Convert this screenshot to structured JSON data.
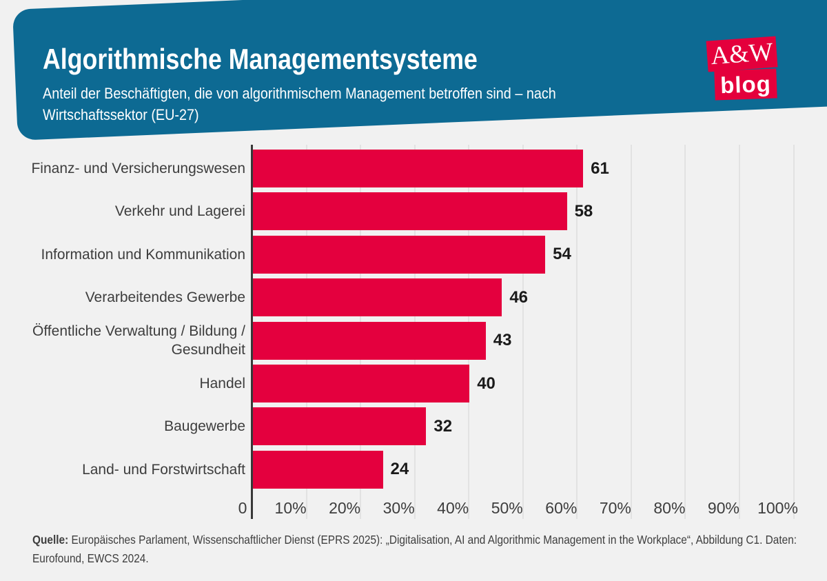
{
  "header": {
    "title": "Algorithmische Managementsysteme",
    "subtitle_lines": [
      "Anteil der Beschäftigten, die von algorithmischem Management betroffen sind – nach",
      "Wirtschaftssektor (EU-27)"
    ]
  },
  "logo": {
    "top_text": "A&W",
    "bottom_text": "blog"
  },
  "chart_data": {
    "type": "bar",
    "orientation": "horizontal",
    "title": "Algorithmische Managementsysteme",
    "subtitle": "Anteil der Beschäftigten, die von algorithmischem Management betroffen sind – nach Wirtschaftssektor (EU-27)",
    "categories": [
      "Finanz- und Versicherungswesen",
      "Verkehr und Lagerei",
      "Information und Kommunikation",
      "Verarbeitendes Gewerbe",
      "Öffentliche Verwaltung / Bildung / Gesundheit",
      "Handel",
      "Baugewerbe",
      "Land- und Forstwirtschaft"
    ],
    "values": [
      61,
      58,
      54,
      46,
      43,
      40,
      32,
      24
    ],
    "xlabel": "",
    "ylabel": "",
    "xlim": [
      0,
      100
    ],
    "x_ticks": [
      {
        "value": 0,
        "label": "0"
      },
      {
        "value": 10,
        "label": "10%"
      },
      {
        "value": 20,
        "label": "20%"
      },
      {
        "value": 30,
        "label": "30%"
      },
      {
        "value": 40,
        "label": "40%"
      },
      {
        "value": 50,
        "label": "50%"
      },
      {
        "value": 60,
        "label": "60%"
      },
      {
        "value": 70,
        "label": "70%"
      },
      {
        "value": 80,
        "label": "80%"
      },
      {
        "value": 90,
        "label": "90%"
      },
      {
        "value": 100,
        "label": "100%"
      }
    ],
    "grid": true,
    "legend": false
  },
  "footer": {
    "source_label": "Quelle:",
    "line1_rest": " Europäisches Parlament, Wissenschaftlicher Dienst (EPRS 2025): „Digitalisation, AI and Algorithmic Management in the Workplace“, Abbildung C1. Daten:",
    "line2": "Eurofound, EWCS 2024."
  },
  "colors": {
    "background": "#f1f1f1",
    "banner_blue": "#0d6a93",
    "bar_red": "#e4003e",
    "logo_red": "#e4003c",
    "axis": "#383838",
    "gridline": "#e2e2e2"
  }
}
